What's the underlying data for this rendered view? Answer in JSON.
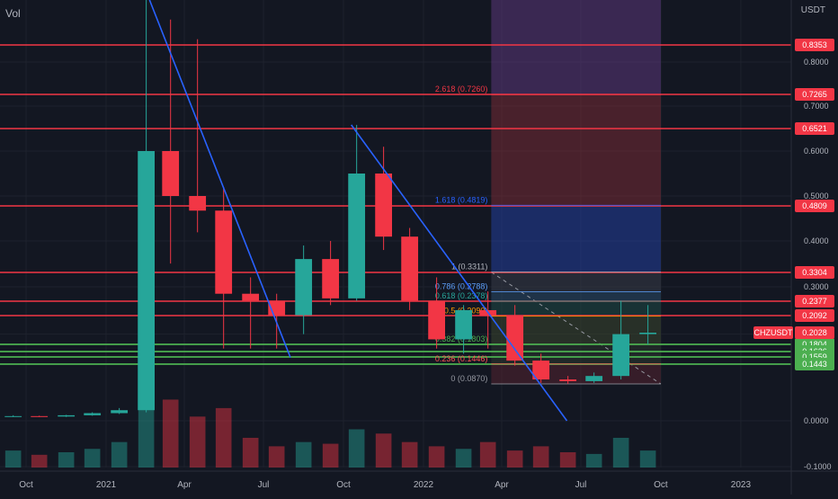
{
  "header": {
    "volume_label": "Vol",
    "currency_label": "USDT"
  },
  "chart_data": {
    "type": "candlestick",
    "symbol": "CHZUSDT",
    "y_scale": "log",
    "ylim": [
      0.0,
      0.95
    ],
    "xlim": [
      "2020-09-01",
      "2023-02-28"
    ],
    "x_ticks": [
      {
        "date": "2020-10-01",
        "label": "Oct"
      },
      {
        "date": "2021-01-01",
        "label": "2021"
      },
      {
        "date": "2021-04-01",
        "label": "Apr"
      },
      {
        "date": "2021-07-01",
        "label": "Jul"
      },
      {
        "date": "2021-10-01",
        "label": "Oct"
      },
      {
        "date": "2022-01-01",
        "label": "2022"
      },
      {
        "date": "2022-04-01",
        "label": "Apr"
      },
      {
        "date": "2022-07-01",
        "label": "Jul"
      },
      {
        "date": "2022-10-01",
        "label": "Oct"
      },
      {
        "date": "2023-01-01",
        "label": "2023"
      }
    ],
    "y_ticks": [
      {
        "value": 0.8,
        "label": "0.8000"
      },
      {
        "value": 0.7,
        "label": "0.7000"
      },
      {
        "value": 0.6,
        "label": "0.6000"
      },
      {
        "value": 0.5,
        "label": "0.5000"
      },
      {
        "value": 0.4,
        "label": "0.4000"
      },
      {
        "value": 0.3,
        "label": "0.3000"
      },
      {
        "value": 0.2,
        "label": "0.2000"
      },
      {
        "value": 0.0,
        "label": "0.0000"
      },
      {
        "value": -0.1,
        "label": "-0.1000"
      }
    ],
    "resistance_levels": [
      {
        "value": 0.8353,
        "label": "0.8353"
      },
      {
        "value": 0.7265,
        "label": "0.7265"
      },
      {
        "value": 0.6521,
        "label": "0.6521"
      },
      {
        "value": 0.4809,
        "label": "0.4809"
      },
      {
        "value": 0.3304,
        "label": "0.3304"
      },
      {
        "value": 0.2377,
        "label": "0.2377"
      },
      {
        "value": 0.2092,
        "label": "0.2092"
      }
    ],
    "support_levels": [
      {
        "value": 0.1804,
        "label": "0.1804"
      },
      {
        "value": 0.1626,
        "label": "0.1626"
      },
      {
        "value": 0.1559,
        "label": "0.1559"
      },
      {
        "value": 0.1443,
        "label": "0.1443"
      }
    ],
    "current_price": {
      "value": 0.2028,
      "label": "0.2028",
      "symbol_label": "CHZUSDT"
    },
    "fib_levels": [
      {
        "value": 0.726,
        "label": "2.618 (0.7260)",
        "color": "#f23645"
      },
      {
        "value": 0.4819,
        "label": "1.618 (0.4819)",
        "color": "#2962ff"
      },
      {
        "value": 0.3311,
        "label": "1 (0.3311)",
        "color": "#b2b5be"
      },
      {
        "value": 0.2788,
        "label": "0.786 (0.2788)",
        "color": "#5b9cf6"
      },
      {
        "value": 0.2378,
        "label": "0.618 (0.2378)",
        "color": "#26a69a"
      },
      {
        "value": 0.209,
        "label": "0.5 (0.2090)",
        "color": "#ff9800"
      },
      {
        "value": 0.1803,
        "label": "0.382 (0.1803)",
        "color": "#4caf50"
      },
      {
        "value": 0.1446,
        "label": "0.236 (0.1446)",
        "color": "#ff5252"
      },
      {
        "value": 0.087,
        "label": "0 (0.0870)",
        "color": "#9598a1"
      }
    ],
    "candles": [
      {
        "date": "2020-09-01",
        "o": 0.01,
        "h": 0.013,
        "l": 0.009,
        "c": 0.011,
        "v": 20
      },
      {
        "date": "2020-10-01",
        "o": 0.011,
        "h": 0.012,
        "l": 0.009,
        "c": 0.01,
        "v": 15
      },
      {
        "date": "2020-11-01",
        "o": 0.01,
        "h": 0.014,
        "l": 0.009,
        "c": 0.013,
        "v": 18
      },
      {
        "date": "2020-12-01",
        "o": 0.013,
        "h": 0.02,
        "l": 0.012,
        "c": 0.018,
        "v": 22
      },
      {
        "date": "2021-01-01",
        "o": 0.018,
        "h": 0.03,
        "l": 0.016,
        "c": 0.025,
        "v": 30
      },
      {
        "date": "2021-02-01",
        "o": 0.025,
        "h": 0.95,
        "l": 0.02,
        "c": 0.6,
        "v": 90
      },
      {
        "date": "2021-03-01",
        "o": 0.6,
        "h": 0.9,
        "l": 0.35,
        "c": 0.5,
        "v": 80
      },
      {
        "date": "2021-04-01",
        "o": 0.5,
        "h": 0.85,
        "l": 0.42,
        "c": 0.47,
        "v": 60
      },
      {
        "date": "2021-05-01",
        "o": 0.47,
        "h": 0.52,
        "l": 0.17,
        "c": 0.27,
        "v": 70
      },
      {
        "date": "2021-06-01",
        "o": 0.27,
        "h": 0.32,
        "l": 0.17,
        "c": 0.24,
        "v": 35
      },
      {
        "date": "2021-07-01",
        "o": 0.24,
        "h": 0.27,
        "l": 0.17,
        "c": 0.21,
        "v": 25
      },
      {
        "date": "2021-08-01",
        "o": 0.21,
        "h": 0.39,
        "l": 0.2,
        "c": 0.36,
        "v": 30
      },
      {
        "date": "2021-09-01",
        "o": 0.36,
        "h": 0.4,
        "l": 0.23,
        "c": 0.25,
        "v": 28
      },
      {
        "date": "2021-10-01",
        "o": 0.25,
        "h": 0.66,
        "l": 0.24,
        "c": 0.55,
        "v": 45
      },
      {
        "date": "2021-11-01",
        "o": 0.55,
        "h": 0.61,
        "l": 0.38,
        "c": 0.41,
        "v": 40
      },
      {
        "date": "2021-12-01",
        "o": 0.41,
        "h": 0.43,
        "l": 0.22,
        "c": 0.24,
        "v": 30
      },
      {
        "date": "2022-01-01",
        "o": 0.24,
        "h": 0.32,
        "l": 0.17,
        "c": 0.19,
        "v": 25
      },
      {
        "date": "2022-02-01",
        "o": 0.19,
        "h": 0.23,
        "l": 0.16,
        "c": 0.22,
        "v": 22
      },
      {
        "date": "2022-03-01",
        "o": 0.22,
        "h": 0.28,
        "l": 0.17,
        "c": 0.21,
        "v": 30
      },
      {
        "date": "2022-04-01",
        "o": 0.21,
        "h": 0.23,
        "l": 0.14,
        "c": 0.15,
        "v": 20
      },
      {
        "date": "2022-05-01",
        "o": 0.15,
        "h": 0.16,
        "l": 0.09,
        "c": 0.1,
        "v": 25
      },
      {
        "date": "2022-06-01",
        "o": 0.1,
        "h": 0.11,
        "l": 0.087,
        "c": 0.095,
        "v": 18
      },
      {
        "date": "2022-07-01",
        "o": 0.095,
        "h": 0.12,
        "l": 0.09,
        "c": 0.11,
        "v": 16
      },
      {
        "date": "2022-08-01",
        "o": 0.11,
        "h": 0.24,
        "l": 0.1,
        "c": 0.2,
        "v": 35
      },
      {
        "date": "2022-09-01",
        "o": 0.2,
        "h": 0.23,
        "l": 0.18,
        "c": 0.2028,
        "v": 20
      }
    ],
    "trendlines": [
      {
        "from": {
          "date": "2021-02-20",
          "value": 0.95
        },
        "to": {
          "date": "2021-08-01",
          "value": 0.155
        }
      },
      {
        "from": {
          "date": "2021-10-10",
          "value": 0.66
        },
        "to": {
          "date": "2022-06-15",
          "value": 0.0
        }
      }
    ],
    "projection_start": "2022-03-20",
    "projection_end": "2022-10-01",
    "colors": {
      "background": "#131722",
      "up": "#26a69a",
      "down": "#f23645",
      "resistance": "#f23645",
      "support": "#4caf50",
      "trendline": "#2962ff",
      "axis_text": "#b2b5be",
      "price_tag_text": "#ffffff"
    }
  }
}
